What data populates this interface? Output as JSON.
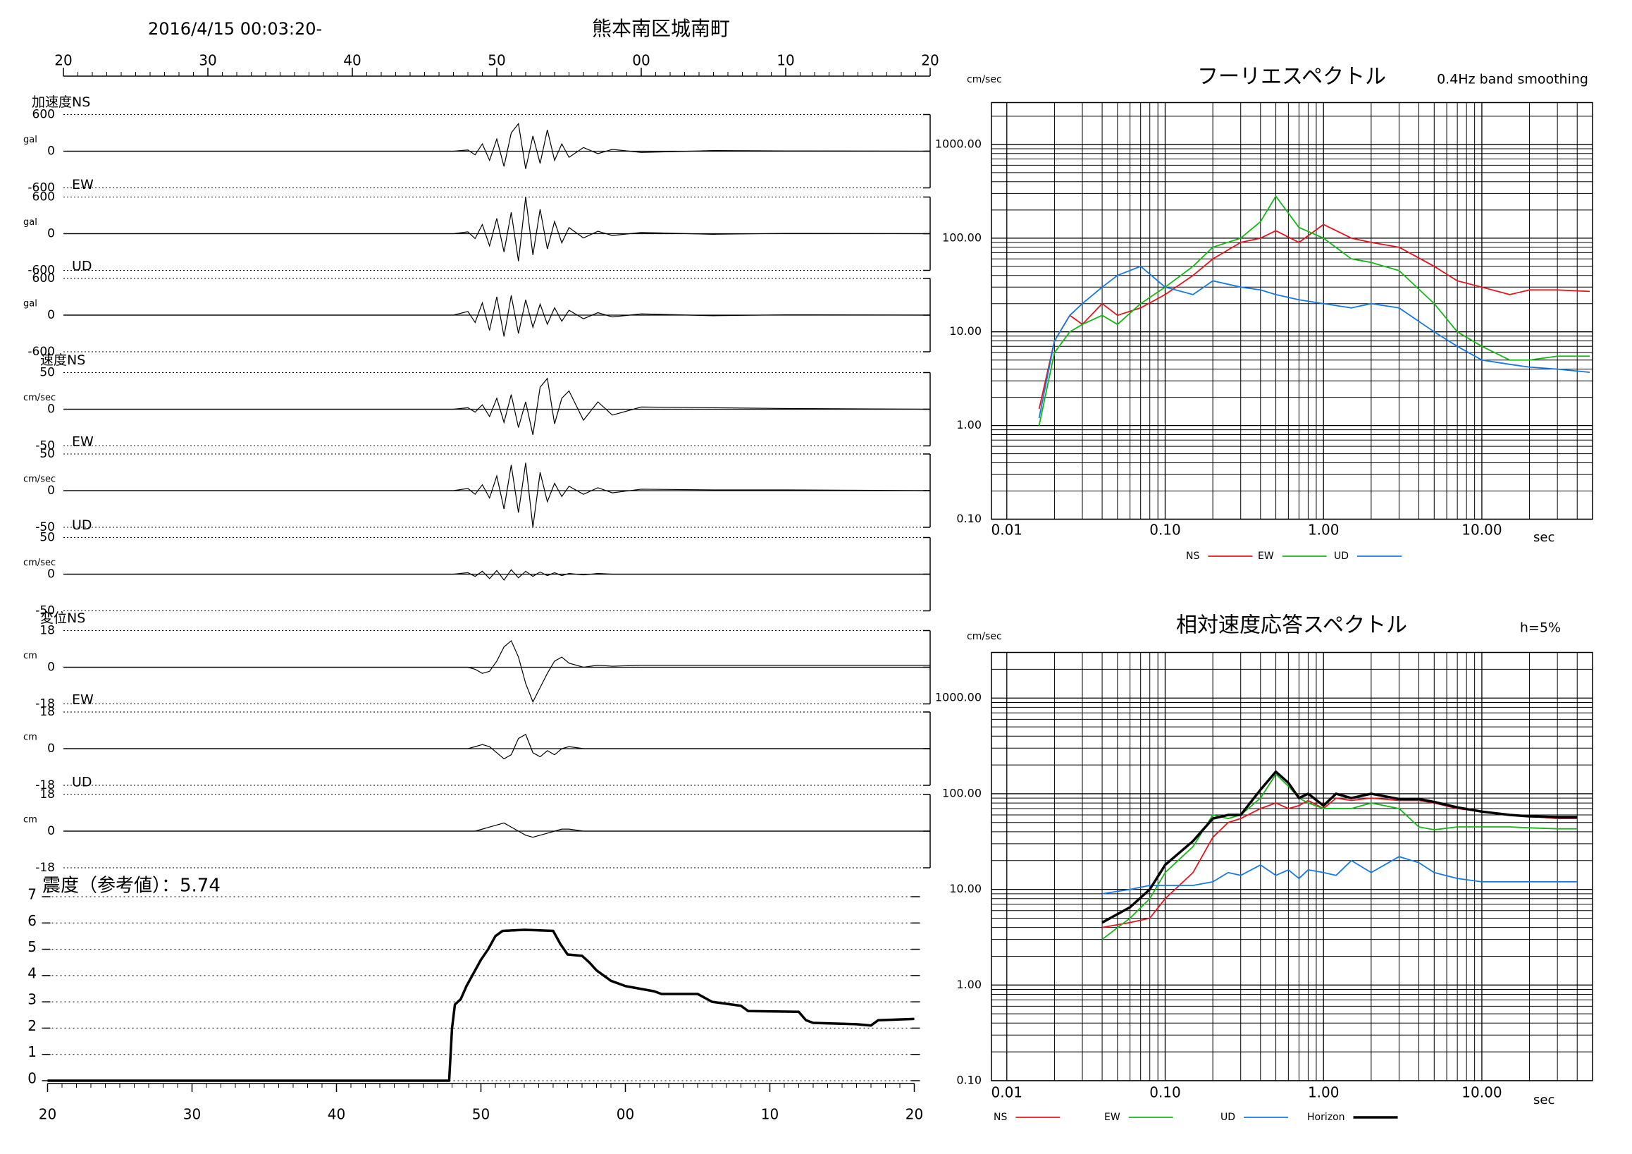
{
  "header": {
    "datetime": "2016/4/15 00:03:20-",
    "station": "熊本南区城南町"
  },
  "chart_data": [
    {
      "type": "waveform",
      "title": "加速度NS",
      "unit": "gal",
      "xlim": [
        20,
        80
      ],
      "xticks": [
        20,
        30,
        40,
        50,
        {
          "value": 60,
          "label": "00"
        },
        {
          "value": 70,
          "label": "10"
        },
        {
          "value": 80,
          "label": "20"
        }
      ],
      "x": [
        20,
        47,
        48,
        48.5,
        49,
        49.5,
        50,
        50.5,
        51,
        51.5,
        52,
        52.5,
        53,
        53.5,
        54,
        54.5,
        55,
        56,
        57,
        58,
        60,
        65,
        70,
        80
      ],
      "values": [
        0,
        0,
        20,
        -60,
        120,
        -150,
        200,
        -250,
        300,
        450,
        -290,
        250,
        -200,
        350,
        -150,
        120,
        -100,
        60,
        -40,
        30,
        -20,
        10,
        5,
        0
      ],
      "ylim": [
        -600,
        600
      ],
      "yticks": [
        -600,
        0,
        600
      ],
      "color": "#000000"
    },
    {
      "type": "waveform",
      "title": "EW",
      "unit": "gal",
      "xlim": [
        20,
        80
      ],
      "x": [
        20,
        47,
        48,
        48.5,
        49,
        49.5,
        50,
        50.5,
        51,
        51.5,
        52,
        52.5,
        53,
        53.5,
        54,
        54.5,
        55,
        56,
        57,
        58,
        60,
        65,
        70,
        80
      ],
      "values": [
        0,
        0,
        30,
        -80,
        150,
        -200,
        250,
        -300,
        350,
        -450,
        600,
        -350,
        400,
        -250,
        200,
        -150,
        100,
        -70,
        40,
        -30,
        20,
        -10,
        5,
        0
      ],
      "ylim": [
        -600,
        600
      ],
      "yticks": [
        -600,
        0,
        600
      ],
      "color": "#000000"
    },
    {
      "type": "waveform",
      "title": "UD",
      "unit": "gal",
      "xlim": [
        20,
        80
      ],
      "x": [
        20,
        47,
        48,
        48.5,
        49,
        49.5,
        50,
        50.5,
        51,
        51.5,
        52,
        52.5,
        53,
        53.5,
        54,
        54.5,
        55,
        56,
        57,
        58,
        60,
        65,
        70,
        80
      ],
      "values": [
        0,
        0,
        60,
        -120,
        200,
        -250,
        300,
        -350,
        320,
        -300,
        250,
        -200,
        180,
        -150,
        120,
        -100,
        80,
        -60,
        40,
        -30,
        20,
        -10,
        5,
        0
      ],
      "ylim": [
        -600,
        600
      ],
      "yticks": [
        -600,
        0,
        600
      ],
      "color": "#000000"
    },
    {
      "type": "waveform",
      "title": "速度NS",
      "unit": "cm/sec",
      "xlim": [
        20,
        80
      ],
      "x": [
        20,
        47,
        48,
        48.5,
        49,
        49.5,
        50,
        50.5,
        51,
        51.5,
        52,
        52.5,
        53,
        53.5,
        54,
        54.5,
        55,
        56,
        57,
        58,
        60,
        65,
        70,
        80
      ],
      "values": [
        0,
        0,
        2,
        -4,
        6,
        -10,
        15,
        -18,
        20,
        -25,
        10,
        -35,
        30,
        42,
        -20,
        15,
        25,
        -15,
        10,
        -8,
        3,
        2,
        1,
        0
      ],
      "ylim": [
        -50,
        50
      ],
      "yticks": [
        -50,
        0,
        50
      ],
      "color": "#000000"
    },
    {
      "type": "waveform",
      "title": "EW",
      "unit": "cm/sec",
      "xlim": [
        20,
        80
      ],
      "x": [
        20,
        47,
        48,
        48.5,
        49,
        49.5,
        50,
        50.5,
        51,
        51.5,
        52,
        52.5,
        53,
        53.5,
        54,
        54.5,
        55,
        56,
        57,
        58,
        60,
        65,
        70,
        80
      ],
      "values": [
        0,
        0,
        3,
        -5,
        8,
        -10,
        20,
        -25,
        35,
        -30,
        38,
        -50,
        25,
        -15,
        10,
        -8,
        6,
        -5,
        4,
        -3,
        2,
        1,
        1,
        0
      ],
      "ylim": [
        -50,
        50
      ],
      "yticks": [
        -50,
        0,
        50
      ],
      "color": "#000000"
    },
    {
      "type": "waveform",
      "title": "UD",
      "unit": "cm/sec",
      "xlim": [
        20,
        80
      ],
      "x": [
        20,
        47,
        48,
        48.5,
        49,
        49.5,
        50,
        50.5,
        51,
        51.5,
        52,
        52.5,
        53,
        53.5,
        54,
        54.5,
        55,
        56,
        57,
        58,
        60,
        65,
        70,
        80
      ],
      "values": [
        0,
        0,
        2,
        -3,
        4,
        -6,
        5,
        -8,
        6,
        -5,
        4,
        -3,
        3,
        -2,
        2,
        -2,
        1,
        -1,
        1,
        0,
        0,
        0,
        0,
        0
      ],
      "ylim": [
        -50,
        50
      ],
      "yticks": [
        -50,
        0,
        50
      ],
      "color": "#000000"
    },
    {
      "type": "waveform",
      "title": "変位NS",
      "unit": "cm",
      "xlim": [
        20,
        80
      ],
      "x": [
        20,
        47,
        48,
        48.5,
        49,
        49.5,
        50,
        50.5,
        51,
        51.5,
        52,
        52.5,
        53,
        53.5,
        54,
        54.5,
        55,
        56,
        57,
        58,
        60,
        65,
        70,
        80
      ],
      "values": [
        0,
        0,
        0,
        -1,
        -3,
        -2,
        3,
        10,
        13,
        5,
        -8,
        -17,
        -10,
        -3,
        3,
        5,
        2,
        0,
        1,
        0.5,
        1,
        1,
        1,
        1
      ],
      "ylim": [
        -18,
        18
      ],
      "yticks": [
        -18,
        0,
        18
      ],
      "color": "#000000"
    },
    {
      "type": "waveform",
      "title": "EW",
      "unit": "cm",
      "xlim": [
        20,
        80
      ],
      "x": [
        20,
        47,
        48,
        48.5,
        49,
        49.5,
        50,
        50.5,
        51,
        51.5,
        52,
        52.5,
        53,
        53.5,
        54,
        54.5,
        55,
        56,
        57,
        58,
        60,
        65,
        70,
        80
      ],
      "values": [
        0,
        0,
        0,
        1,
        2,
        1,
        -2,
        -5,
        -3,
        5,
        7,
        -2,
        -4,
        -1,
        -3,
        0,
        1,
        0,
        0,
        0,
        0,
        0,
        0,
        0
      ],
      "ylim": [
        -18,
        18
      ],
      "yticks": [
        -18,
        0,
        18
      ],
      "color": "#000000"
    },
    {
      "type": "waveform",
      "title": "UD",
      "unit": "cm",
      "xlim": [
        20,
        80
      ],
      "x": [
        20,
        47,
        48,
        48.5,
        49,
        49.5,
        50,
        50.5,
        51,
        51.5,
        52,
        52.5,
        53,
        53.5,
        54,
        54.5,
        55,
        56,
        57,
        58,
        60,
        65,
        70,
        80
      ],
      "values": [
        0,
        0,
        0,
        0,
        1,
        2,
        3,
        4,
        2,
        0,
        -2,
        -3,
        -2,
        -1,
        0,
        1,
        1,
        0,
        0,
        0,
        0,
        0,
        0,
        0
      ],
      "ylim": [
        -18,
        18
      ],
      "yticks": [
        -18,
        0,
        18
      ],
      "color": "#000000"
    },
    {
      "type": "intensity",
      "title": "震度（参考値）：5.74",
      "xlim": [
        20,
        80
      ],
      "xticks": [
        20,
        30,
        40,
        50,
        {
          "value": 60,
          "label": "00"
        },
        {
          "value": 70,
          "label": "10"
        },
        {
          "value": 80,
          "label": "20"
        }
      ],
      "x": [
        20,
        47.8,
        48,
        48.2,
        48.6,
        49,
        49.5,
        50,
        50.5,
        51,
        51.5,
        53,
        55,
        55.5,
        56,
        57,
        57.5,
        58,
        59,
        60,
        62,
        62.5,
        65,
        66,
        68,
        68.5,
        72,
        72.5,
        73,
        76,
        77,
        77.5,
        80
      ],
      "values": [
        0,
        0,
        2,
        2.9,
        3.1,
        3.6,
        4.1,
        4.6,
        5,
        5.5,
        5.7,
        5.74,
        5.7,
        5.2,
        4.8,
        4.75,
        4.5,
        4.2,
        3.8,
        3.6,
        3.4,
        3.3,
        3.3,
        3,
        2.85,
        2.65,
        2.62,
        2.3,
        2.2,
        2.15,
        2.1,
        2.3,
        2.35
      ],
      "ylim": [
        0,
        7
      ],
      "yticks": [
        0,
        1,
        2,
        3,
        4,
        5,
        6,
        7
      ],
      "grid": true,
      "color": "#000000"
    },
    {
      "type": "spectrum",
      "title": "フーリエスペクトル",
      "subtitle": "0.4Hz band smoothing",
      "ylabel": "cm/sec",
      "xlabel": "sec",
      "xscale": "log",
      "yscale": "log",
      "xlim": [
        0.008,
        50
      ],
      "ylim": [
        0.1,
        2800
      ],
      "grid": true,
      "xticks": [
        0.01,
        {
          "value": 0.1,
          "label": "0.10"
        },
        {
          "value": 1,
          "label": "1.00"
        },
        {
          "value": 10,
          "label": "10.00"
        }
      ],
      "yticks": [
        {
          "value": 0.1,
          "label": "0.10"
        },
        {
          "value": 1,
          "label": "1.00"
        },
        {
          "value": 10,
          "label": "10.00"
        },
        {
          "value": 100,
          "label": "100.00"
        },
        {
          "value": 1000,
          "label": "1000.00"
        }
      ],
      "x": [
        0.016,
        0.02,
        0.025,
        0.03,
        0.04,
        0.05,
        0.07,
        0.1,
        0.15,
        0.2,
        0.3,
        0.4,
        0.5,
        0.7,
        1,
        1.5,
        2,
        3,
        5,
        7,
        10,
        15,
        20,
        30,
        48
      ],
      "series": [
        {
          "name": "NS",
          "color": "#e8131c",
          "values": [
            1.5,
            8,
            15,
            12,
            20,
            15,
            18,
            25,
            40,
            60,
            90,
            100,
            120,
            90,
            140,
            100,
            90,
            80,
            50,
            35,
            30,
            25,
            28,
            28,
            27
          ]
        },
        {
          "name": "EW",
          "color": "#14b814",
          "values": [
            1,
            6,
            10,
            12,
            15,
            12,
            20,
            30,
            50,
            80,
            100,
            150,
            280,
            130,
            100,
            60,
            55,
            45,
            20,
            10,
            7,
            5,
            5,
            5.5,
            5.5
          ]
        },
        {
          "name": "UD",
          "color": "#1479e8",
          "values": [
            1.2,
            8,
            15,
            20,
            30,
            40,
            50,
            30,
            25,
            35,
            30,
            28,
            25,
            22,
            20,
            18,
            20,
            18,
            10,
            7,
            5,
            4.5,
            4.2,
            4,
            3.7
          ]
        }
      ]
    },
    {
      "type": "spectrum",
      "title": "相対速度応答スペクトル",
      "subtitle": "h=5%",
      "ylabel": "cm/sec",
      "xlabel": "sec",
      "xscale": "log",
      "yscale": "log",
      "xlim": [
        0.008,
        50
      ],
      "ylim": [
        0.1,
        3000
      ],
      "grid": true,
      "xticks": [
        0.01,
        {
          "value": 0.1,
          "label": "0.10"
        },
        {
          "value": 1,
          "label": "1.00"
        },
        {
          "value": 10,
          "label": "10.00"
        }
      ],
      "yticks": [
        {
          "value": 0.1,
          "label": "0.10"
        },
        {
          "value": 1,
          "label": "1.00"
        },
        {
          "value": 10,
          "label": "10.00"
        },
        {
          "value": 100,
          "label": "100.00"
        },
        {
          "value": 1000,
          "label": "1000.00"
        }
      ],
      "x": [
        0.04,
        0.06,
        0.08,
        0.1,
        0.15,
        0.2,
        0.25,
        0.3,
        0.4,
        0.5,
        0.6,
        0.7,
        0.8,
        1,
        1.2,
        1.5,
        2,
        3,
        4,
        5,
        7,
        10,
        15,
        20,
        30,
        40
      ],
      "series": [
        {
          "name": "NS",
          "color": "#e8131c",
          "values": [
            4,
            4.5,
            5,
            8,
            15,
            35,
            50,
            55,
            70,
            80,
            70,
            75,
            85,
            70,
            90,
            85,
            90,
            85,
            85,
            80,
            70,
            65,
            60,
            58,
            55,
            55
          ]
        },
        {
          "name": "EW",
          "color": "#14b814",
          "values": [
            3,
            5,
            8,
            15,
            28,
            60,
            55,
            60,
            90,
            160,
            120,
            90,
            80,
            70,
            70,
            70,
            80,
            70,
            45,
            42,
            45,
            45,
            45,
            44,
            43,
            43
          ]
        },
        {
          "name": "UD",
          "color": "#1479e8",
          "values": [
            9,
            10,
            11,
            11,
            11,
            12,
            15,
            14,
            18,
            14,
            16,
            13,
            16,
            15,
            14,
            20,
            15,
            22,
            19,
            15,
            13,
            12,
            12,
            12,
            12,
            12
          ]
        },
        {
          "name": "Horizon",
          "color": "#000000",
          "line_width": 3.5,
          "values": [
            4.5,
            6.5,
            10,
            18,
            32,
            55,
            60,
            60,
            110,
            170,
            130,
            90,
            100,
            75,
            100,
            90,
            100,
            88,
            88,
            82,
            72,
            65,
            60,
            58,
            57,
            57
          ]
        }
      ]
    }
  ]
}
